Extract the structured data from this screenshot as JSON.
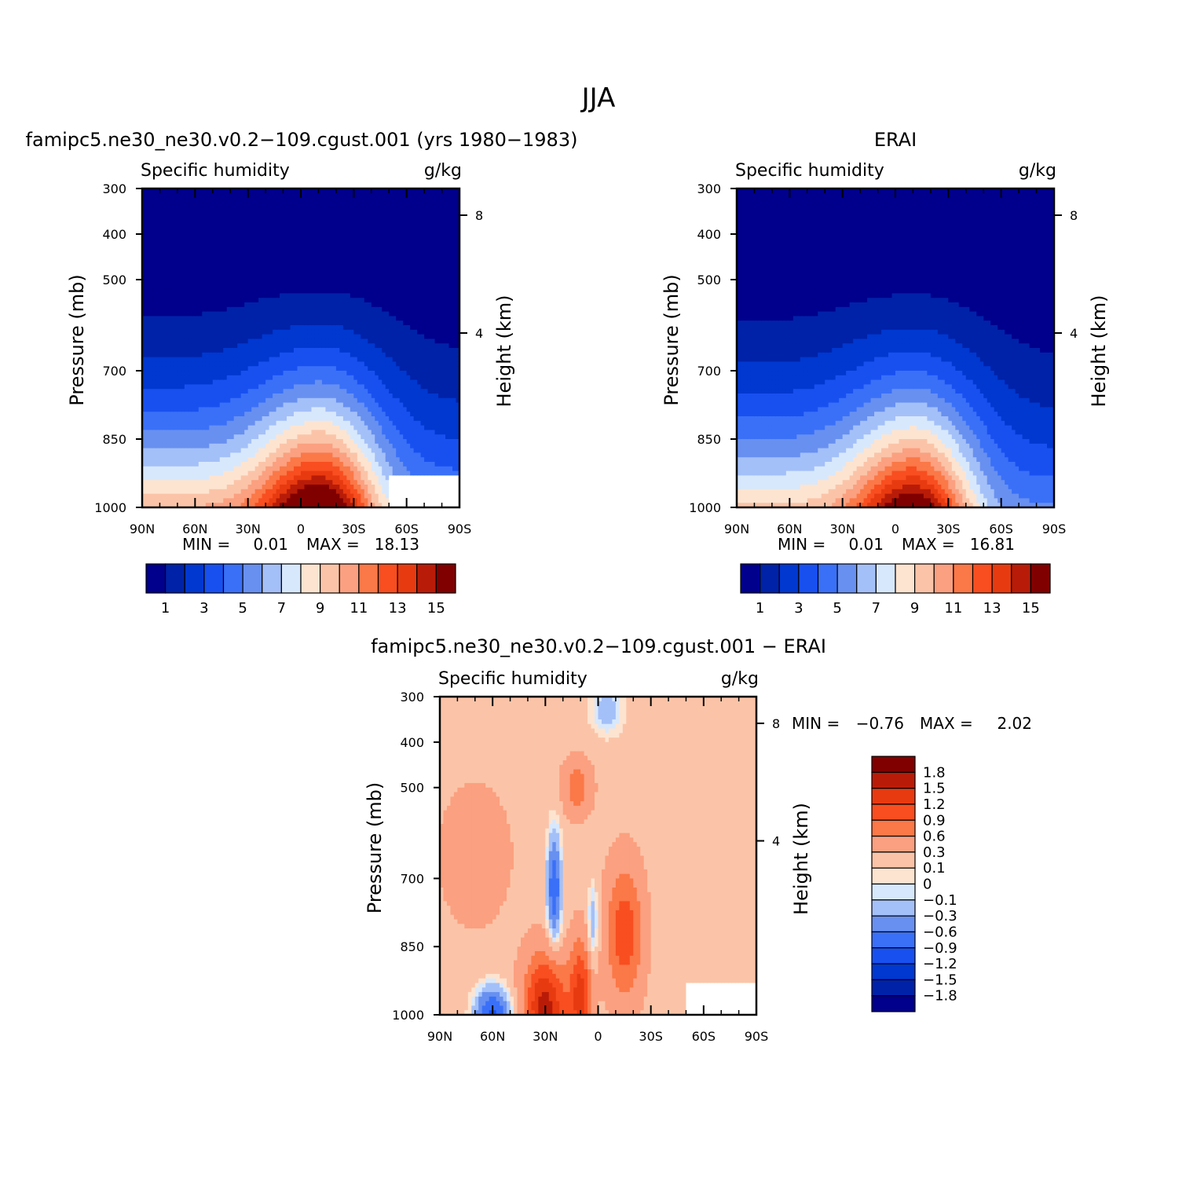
{
  "figure": {
    "title": "JJA"
  },
  "chart_data": [
    {
      "type": "heatmap",
      "panel_title": "famipc5.ne30_ne30.v0.2−109.cgust.001 (yrs 1980−1983)",
      "title": "Specific humidity",
      "units": "g/kg",
      "xlabel": "",
      "ylabel": "Pressure (mb)",
      "y2label": "Height (km)",
      "x_ticks": [
        "90N",
        "60N",
        "30N",
        "0",
        "30S",
        "60S",
        "90S"
      ],
      "y_ticks": [
        300,
        400,
        500,
        700,
        850,
        1000
      ],
      "y2_ticks": [
        8,
        4
      ],
      "ylim": [
        1000,
        300
      ],
      "stats": {
        "min_label": "MIN =",
        "min": "0.01",
        "max_label": "MAX =",
        "max": "18.13"
      },
      "colorbar": {
        "orientation": "horizontal",
        "labels": [
          "1",
          "3",
          "5",
          "7",
          "9",
          "11",
          "13",
          "15"
        ],
        "colors": [
          "#00008c",
          "#0022a8",
          "#0038d0",
          "#1850f0",
          "#3a70f8",
          "#6890f0",
          "#a4c0f8",
          "#d8e8fc",
          "#fde4d0",
          "#fbc4a8",
          "#fba080",
          "#fb7848",
          "#f84e20",
          "#e83a10",
          "#b81c08",
          "#800000"
        ]
      },
      "field": {
        "peak_lat": -10,
        "peak_value": 18.13,
        "surface_mask": {
          "lat_from": -50,
          "lat_to": -90,
          "pressure_from": 930
        }
      }
    },
    {
      "type": "heatmap",
      "panel_title": "ERAI",
      "title": "Specific humidity",
      "units": "g/kg",
      "xlabel": "",
      "ylabel": "Pressure (mb)",
      "y2label": "Height (km)",
      "x_ticks": [
        "90N",
        "60N",
        "30N",
        "0",
        "30S",
        "60S",
        "90S"
      ],
      "y_ticks": [
        300,
        400,
        500,
        700,
        850,
        1000
      ],
      "y2_ticks": [
        8,
        4
      ],
      "ylim": [
        1000,
        300
      ],
      "stats": {
        "min_label": "MIN =",
        "min": "0.01",
        "max_label": "MAX =",
        "max": "16.81"
      },
      "colorbar": {
        "orientation": "horizontal",
        "labels": [
          "1",
          "3",
          "5",
          "7",
          "9",
          "11",
          "13",
          "15"
        ],
        "colors": [
          "#00008c",
          "#0022a8",
          "#0038d0",
          "#1850f0",
          "#3a70f8",
          "#6890f0",
          "#a4c0f8",
          "#d8e8fc",
          "#fde4d0",
          "#fbc4a8",
          "#fba080",
          "#fb7848",
          "#f84e20",
          "#e83a10",
          "#b81c08",
          "#800000"
        ]
      },
      "field": {
        "peak_lat": -10,
        "peak_value": 16.81
      }
    },
    {
      "type": "heatmap",
      "panel_title": "famipc5.ne30_ne30.v0.2−109.cgust.001 − ERAI",
      "title": "Specific humidity",
      "units": "g/kg",
      "xlabel": "",
      "ylabel": "Pressure (mb)",
      "y2label": "Height (km)",
      "x_ticks": [
        "90N",
        "60N",
        "30N",
        "0",
        "30S",
        "60S",
        "90S"
      ],
      "y_ticks": [
        300,
        400,
        500,
        700,
        850,
        1000
      ],
      "y2_ticks": [
        8,
        4
      ],
      "ylim": [
        1000,
        300
      ],
      "stats": {
        "min_label": "MIN =",
        "min": "−0.76",
        "max_label": "MAX =",
        "max": "2.02"
      },
      "colorbar": {
        "orientation": "vertical",
        "labels": [
          "1.8",
          "1.5",
          "1.2",
          "0.9",
          "0.6",
          "0.3",
          "0.1",
          "0",
          "−0.1",
          "−0.3",
          "−0.6",
          "−0.9",
          "−1.2",
          "−1.5",
          "−1.8"
        ],
        "colors": [
          "#800000",
          "#b81c08",
          "#e83a10",
          "#f84e20",
          "#fb7848",
          "#fba080",
          "#fbc4a8",
          "#fde4d0",
          "#d8e8fc",
          "#a4c0f8",
          "#6890f0",
          "#3a70f8",
          "#1850f0",
          "#0038d0",
          "#0022a8",
          "#00008c"
        ]
      },
      "field": {
        "min": -0.76,
        "max": 2.02
      }
    }
  ]
}
